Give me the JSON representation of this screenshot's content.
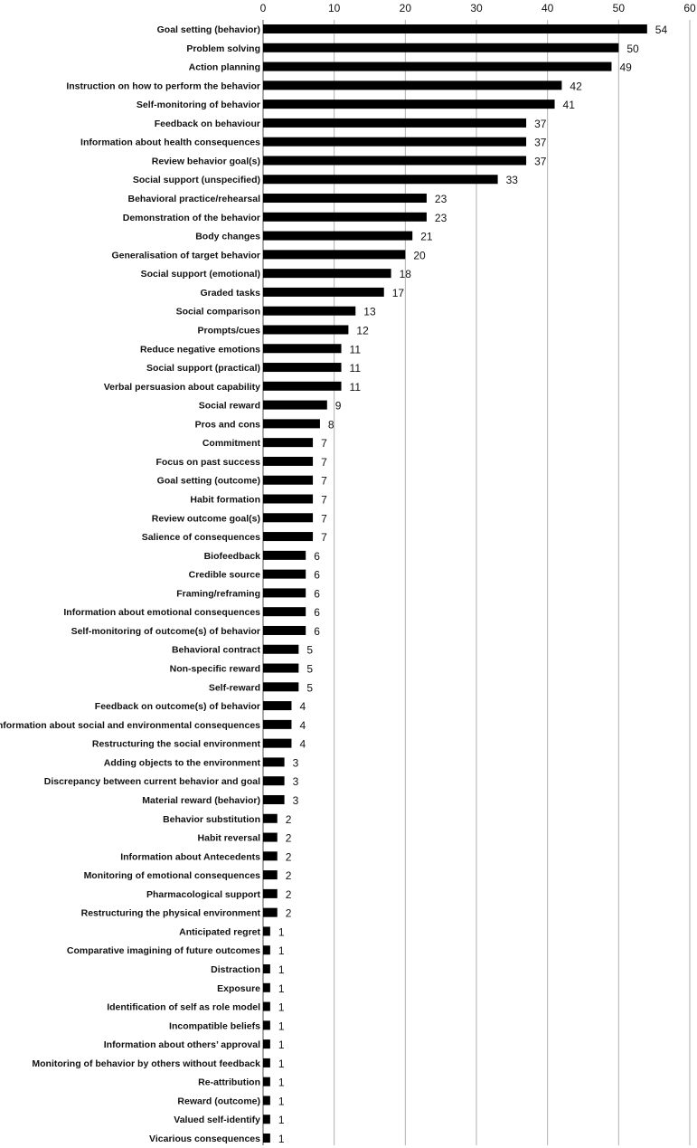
{
  "chart_data": {
    "type": "bar",
    "orientation": "horizontal",
    "title": "",
    "xlabel": "",
    "ylabel": "",
    "xlim": [
      0,
      60
    ],
    "x_ticks": [
      0,
      10,
      20,
      30,
      40,
      50,
      60
    ],
    "grid": true,
    "legend": "none",
    "bar_color": "#000000",
    "grid_color": "#b0b0b0",
    "categories": [
      "Goal setting (behavior)",
      "Problem solving",
      "Action planning",
      "Instruction on how to perform the behavior",
      "Self-monitoring of behavior",
      "Feedback on behaviour",
      "Information about health consequences",
      "Review behavior goal(s)",
      "Social support (unspecified)",
      "Behavioral practice/rehearsal",
      "Demonstration of the behavior",
      "Body changes",
      "Generalisation of target behavior",
      "Social support (emotional)",
      "Graded tasks",
      "Social comparison",
      "Prompts/cues",
      "Reduce negative emotions",
      "Social support (practical)",
      "Verbal persuasion about capability",
      "Social reward",
      "Pros and cons",
      "Commitment",
      "Focus on past success",
      "Goal setting (outcome)",
      "Habit formation",
      "Review outcome goal(s)",
      "Salience of consequences",
      "Biofeedback",
      "Credible source",
      "Framing/reframing",
      "Information about emotional consequences",
      "Self-monitoring of outcome(s) of behavior",
      "Behavioral contract",
      "Non-specific reward",
      "Self-reward",
      "Feedback on outcome(s) of behavior",
      "Information about social and environmental consequences",
      "Restructuring the social environment",
      "Adding objects to the environment",
      "Discrepancy between current behavior and goal",
      "Material reward (behavior)",
      "Behavior substitution",
      "Habit reversal",
      "Information about Antecedents",
      "Monitoring of emotional consequences",
      "Pharmacological support",
      "Restructuring the physical environment",
      "Anticipated regret",
      "Comparative imagining of future outcomes",
      "Distraction",
      "Exposure",
      "Identification of self as role model",
      "Incompatible beliefs",
      "Information about others’ approval",
      "Monitoring of behavior by others without feedback",
      "Re-attribution",
      "Reward (outcome)",
      "Valued self-identify",
      "Vicarious consequences"
    ],
    "values": [
      54,
      50,
      49,
      42,
      41,
      37,
      37,
      37,
      33,
      23,
      23,
      21,
      20,
      18,
      17,
      13,
      12,
      11,
      11,
      11,
      9,
      8,
      7,
      7,
      7,
      7,
      7,
      7,
      6,
      6,
      6,
      6,
      6,
      5,
      5,
      5,
      4,
      4,
      4,
      3,
      3,
      3,
      2,
      2,
      2,
      2,
      2,
      2,
      1,
      1,
      1,
      1,
      1,
      1,
      1,
      1,
      1,
      1,
      1,
      1
    ]
  }
}
